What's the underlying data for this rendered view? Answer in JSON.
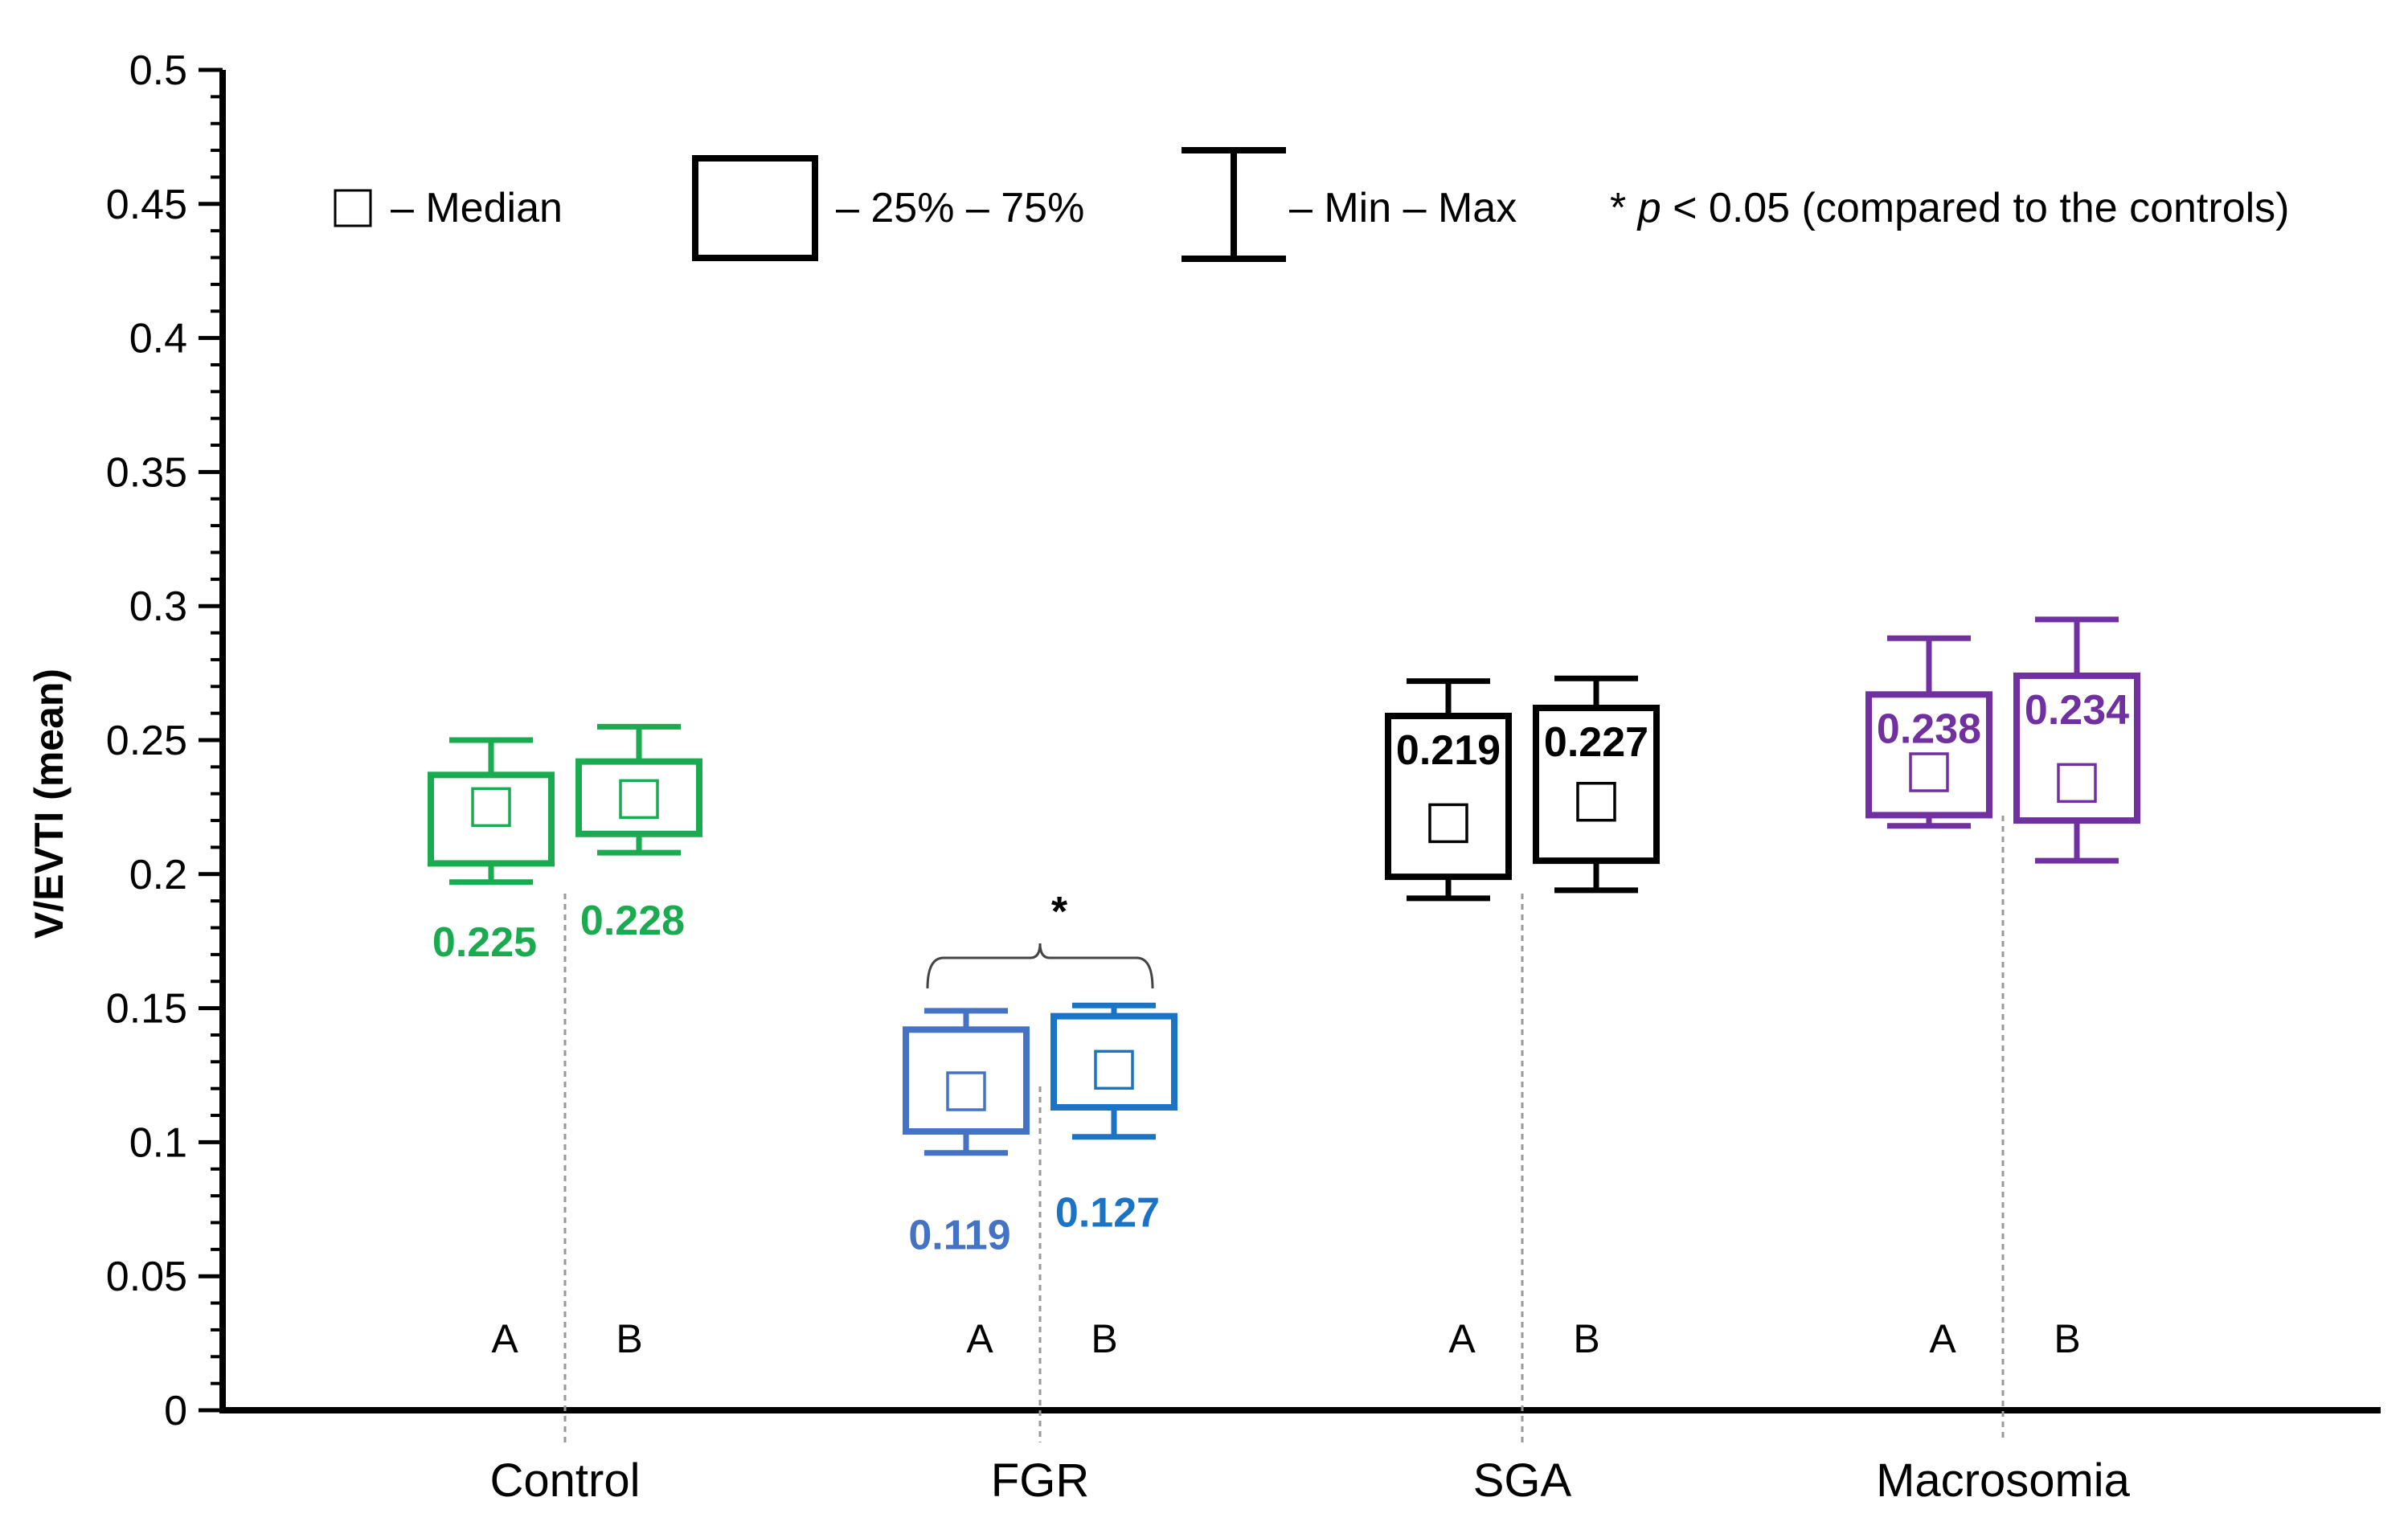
{
  "chart_data": {
    "type": "boxplot",
    "ylabel": "V/EVTI (mean)",
    "ylim": [
      0,
      0.5
    ],
    "yticks": [
      "0",
      "0.05",
      "0.1",
      "0.15",
      "0.2",
      "0.25",
      "0.3",
      "0.35",
      "0.4",
      "0.45",
      "0.5"
    ],
    "categories": [
      "Control",
      "FGR",
      "SGA",
      "Macrosomia"
    ],
    "subgroup_labels": [
      "A",
      "B"
    ],
    "legend": {
      "median": "– Median",
      "iqr": "– 25% – 75%",
      "range": "– Min – Max",
      "significance_star": "*",
      "significance_p": "p",
      "significance_text": "< 0.05 (compared to the controls)"
    },
    "significance": [
      {
        "category": "FGR",
        "marker": "*"
      }
    ],
    "groups": [
      {
        "category": "Control",
        "color": "#1aaa50",
        "boxes": [
          {
            "sub": "A",
            "min": 0.197,
            "q1": 0.204,
            "median": 0.225,
            "q3": 0.237,
            "max": 0.25,
            "label": "0.225",
            "label_pos": "below"
          },
          {
            "sub": "B",
            "min": 0.208,
            "q1": 0.215,
            "median": 0.228,
            "q3": 0.242,
            "max": 0.255,
            "label": "0.228",
            "label_pos": "below"
          }
        ]
      },
      {
        "category": "FGR",
        "color": "#1a73c4",
        "boxes": [
          {
            "sub": "A",
            "min": 0.096,
            "q1": 0.104,
            "median": 0.119,
            "q3": 0.142,
            "max": 0.149,
            "label": "0.119",
            "label_pos": "below",
            "color": "#4472c4"
          },
          {
            "sub": "B",
            "min": 0.102,
            "q1": 0.113,
            "median": 0.127,
            "q3": 0.147,
            "max": 0.151,
            "label": "0.127",
            "label_pos": "below"
          }
        ]
      },
      {
        "category": "SGA",
        "color": "#000000",
        "boxes": [
          {
            "sub": "A",
            "min": 0.191,
            "q1": 0.199,
            "median": 0.219,
            "q3": 0.259,
            "max": 0.272,
            "label": "0.219",
            "label_pos": "inside"
          },
          {
            "sub": "B",
            "min": 0.194,
            "q1": 0.205,
            "median": 0.227,
            "q3": 0.262,
            "max": 0.273,
            "label": "0.227",
            "label_pos": "inside"
          }
        ]
      },
      {
        "category": "Macrosomia",
        "color": "#7030a0",
        "boxes": [
          {
            "sub": "A",
            "min": 0.218,
            "q1": 0.222,
            "median": 0.238,
            "q3": 0.267,
            "max": 0.288,
            "label": "0.238",
            "label_pos": "inside"
          },
          {
            "sub": "B",
            "min": 0.205,
            "q1": 0.22,
            "median": 0.234,
            "q3": 0.274,
            "max": 0.295,
            "label": "0.234",
            "label_pos": "inside"
          }
        ]
      }
    ]
  }
}
